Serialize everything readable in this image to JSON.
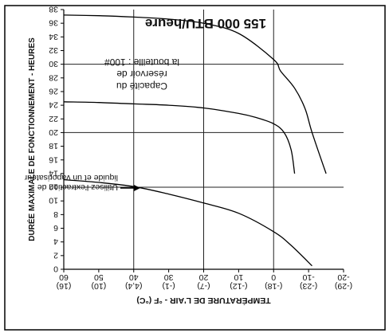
{
  "chart_data": {
    "type": "line",
    "title": "155 000 BTU/heure",
    "x_axis": {
      "label": "TEMPÉRATURE DE L'AIR - °F (°C)",
      "range": [
        -20,
        60
      ],
      "ticks": [
        60,
        50,
        40,
        30,
        20,
        10,
        0,
        -10,
        -20
      ],
      "tick_labels_f": [
        "60",
        "50",
        "40",
        "30",
        "20",
        "10",
        "0",
        "-10",
        "-20"
      ],
      "tick_labels_c": [
        "(16)",
        "(10)",
        "(4,4)",
        "(-1)",
        "(-7)",
        "(-12)",
        "(-18)",
        "(-23)",
        "(-29)"
      ]
    },
    "y_axis": {
      "label": "DURÉE MAXIMALE DE FONCTIONNEMENT - HEURES",
      "range": [
        0,
        38
      ],
      "ticks": [
        0,
        2,
        4,
        6,
        8,
        10,
        12,
        14,
        16,
        18,
        20,
        22,
        24,
        26,
        28,
        30,
        32,
        34,
        36,
        38
      ],
      "tick_labels": [
        "0",
        "2",
        "4",
        "6",
        "8",
        "10",
        "12",
        "14",
        "16",
        "18",
        "20",
        "22",
        "24",
        "26",
        "28",
        "30",
        "32",
        "34",
        "36",
        "38"
      ]
    },
    "grid": "partial",
    "reference_lines": [
      {
        "axis": "y",
        "value": 12
      },
      {
        "axis": "y",
        "value": 20
      },
      {
        "axis": "y",
        "value": 30
      },
      {
        "axis": "x",
        "value": 40
      },
      {
        "axis": "x",
        "value": 20
      },
      {
        "axis": "x",
        "value": 0
      }
    ],
    "series": [
      {
        "x": [
          -11,
          -5,
          0,
          10,
          20,
          30,
          40,
          50,
          60
        ],
        "y": [
          0.5,
          3.5,
          5.5,
          8.2,
          9.7,
          11,
          12.1,
          12.7,
          13.1
        ]
      },
      {
        "x": [
          -6,
          -5,
          -3,
          0,
          5,
          10,
          20,
          30,
          40,
          50,
          60
        ],
        "y": [
          14,
          17.5,
          20,
          21.3,
          22.2,
          22.8,
          23.6,
          24,
          24.2,
          24.4,
          24.5
        ]
      },
      {
        "x": [
          -15,
          -11,
          -9,
          -6,
          -2,
          0,
          10,
          20,
          30,
          40,
          50,
          60
        ],
        "y": [
          14,
          20,
          23.5,
          26.5,
          29,
          30.7,
          34.5,
          36,
          36.6,
          36.9,
          37.1,
          37.2
        ]
      }
    ],
    "annotations": {
      "arrow_text": [
        "Utilisez l'extraction de",
        "liquide et un vaporisateur"
      ],
      "capacity_text": [
        "Capacité du",
        "réservoir de",
        "la bouteille : 100#"
      ]
    }
  }
}
